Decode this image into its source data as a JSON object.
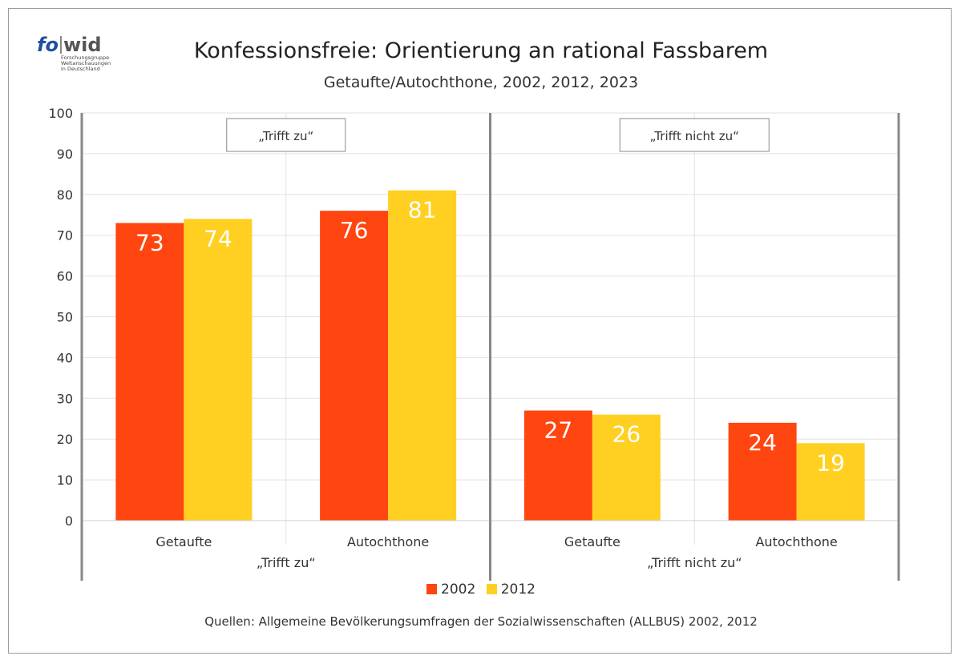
{
  "logo": {
    "fo": "fo",
    "wid": "wid",
    "lines": [
      "Forschungsgruppe",
      "Weltanschauungen",
      "in Deutschland"
    ]
  },
  "title": "Konfessionsfreie: Orientierung an rational Fassbarem",
  "subtitle": "Getaufte/Autochthone, 2002, 2012, 2023",
  "source": "Quellen: Allgemeine Bevölkerungsumfragen der Sozialwissenschaften (ALLBUS) 2002, 2012",
  "colors": {
    "s2002": "#ff4510",
    "s2012": "#ffd021"
  },
  "chart_data": {
    "type": "bar",
    "ylim": [
      0,
      100
    ],
    "yticks": [
      0,
      10,
      20,
      30,
      40,
      50,
      60,
      70,
      80,
      90,
      100
    ],
    "grid": true,
    "legend_position": "bottom",
    "series": [
      {
        "name": "2002",
        "color": "#ff4510"
      },
      {
        "name": "2012",
        "color": "#ffd021"
      }
    ],
    "groups": [
      {
        "label": "„Trifft zu“",
        "box_label": "„Trifft zu“",
        "categories": [
          {
            "label": "Getaufte",
            "values": [
              73,
              74
            ]
          },
          {
            "label": "Autochthone",
            "values": [
              76,
              81
            ]
          }
        ]
      },
      {
        "label": "„Trifft nicht zu“",
        "box_label": "„Trifft nicht zu“",
        "categories": [
          {
            "label": "Getaufte",
            "values": [
              27,
              26
            ]
          },
          {
            "label": "Autochthone",
            "values": [
              24,
              19
            ]
          }
        ]
      }
    ]
  }
}
